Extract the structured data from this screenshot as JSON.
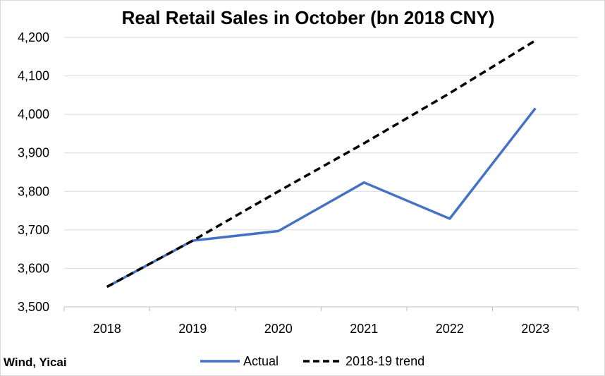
{
  "chart_data": {
    "type": "line",
    "title": "Real Retail Sales in October (bn 2018 CNY)",
    "xlabel": "",
    "ylabel": "",
    "x": [
      "2018",
      "2019",
      "2020",
      "2021",
      "2022",
      "2023"
    ],
    "ylim": [
      3500,
      4200
    ],
    "y_ticks": [
      3500,
      3600,
      3700,
      3800,
      3900,
      4000,
      4100,
      4200
    ],
    "grid": true,
    "legend_position": "bottom",
    "series": [
      {
        "name": "Actual",
        "values": [
          3552,
          3672,
          3697,
          3823,
          3729,
          4016
        ],
        "color": "#4472c4",
        "style": "solid"
      },
      {
        "name": "2018-19 trend",
        "values": [
          3552,
          3672,
          3800,
          3925,
          4055,
          4192
        ],
        "color": "#000000",
        "style": "dashed"
      }
    ]
  },
  "source_note": "Wind, Yicai"
}
